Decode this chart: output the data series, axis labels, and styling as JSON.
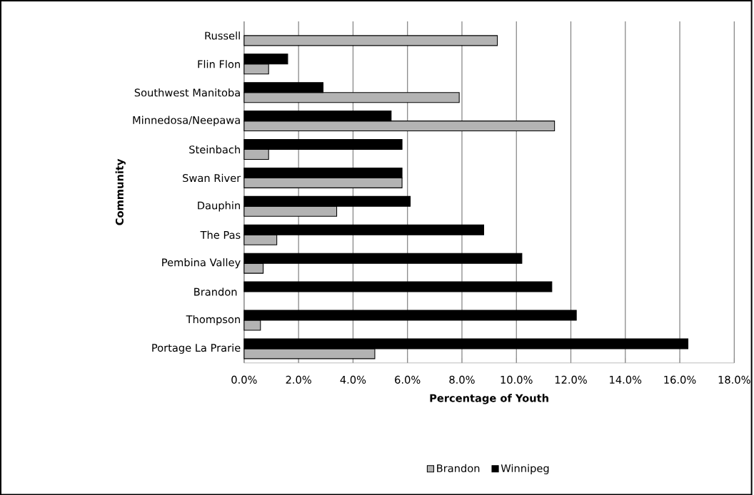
{
  "chart_data": {
    "type": "bar",
    "orientation": "horizontal",
    "categories": [
      "Russell",
      "Flin Flon",
      "Southwest Manitoba",
      "Minnedosa/Neepawa",
      "Steinbach",
      "Swan River",
      "Dauphin",
      "The Pas",
      "Pembina Valley",
      "Brandon ",
      "Thompson",
      "Portage La Prarie"
    ],
    "series": [
      {
        "name": "Brandon",
        "color": "#b3b3b3",
        "values": [
          9.3,
          0.9,
          7.9,
          11.4,
          0.9,
          5.8,
          3.4,
          1.2,
          0.7,
          null,
          0.6,
          4.8
        ]
      },
      {
        "name": "Winnipeg",
        "color": "#000000",
        "values": [
          null,
          1.6,
          2.9,
          5.4,
          5.8,
          5.8,
          6.1,
          8.8,
          10.2,
          11.3,
          12.2,
          16.3
        ]
      }
    ],
    "xlim": [
      0,
      18
    ],
    "xticks": [
      {
        "value": 0,
        "label": "0.0%"
      },
      {
        "value": 2,
        "label": "2.0%"
      },
      {
        "value": 4,
        "label": "4.0%"
      },
      {
        "value": 6,
        "label": "6.0%"
      },
      {
        "value": 8,
        "label": "8.0%"
      },
      {
        "value": 10,
        "label": "10.0%"
      },
      {
        "value": 12,
        "label": "12.0%"
      },
      {
        "value": 14,
        "label": "14.0%"
      },
      {
        "value": 16,
        "label": "16.0%"
      },
      {
        "value": 18,
        "label": "18.0%"
      }
    ],
    "xlabel": "Percentage of Youth",
    "ylabel": "Community",
    "grid": "x",
    "legend": "bottom"
  }
}
